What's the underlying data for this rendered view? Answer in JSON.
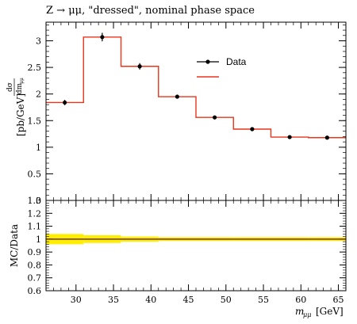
{
  "chart_data": [
    {
      "type": "line",
      "title": "Z → μμ, \"dressed\", nominal phase space",
      "ylabel_top": "dσ",
      "ylabel_bottom": "dm",
      "ylabel_bottom_sub": "μμ",
      "ylabel_unit": "[pb/GeV]",
      "ylim": [
        0,
        3.35
      ],
      "yticks": [
        0,
        0.5,
        1,
        1.5,
        2,
        2.5,
        3
      ],
      "ytick_labels": [
        "0",
        "0.5",
        "1",
        "1.5",
        "2",
        "2.5",
        "3"
      ],
      "xlim": [
        26,
        66
      ],
      "legend_position": "top-right",
      "series": [
        {
          "name": "Data",
          "color": "#000000",
          "kind": "points",
          "x": [
            28.5,
            33.5,
            38.5,
            43.5,
            48.5,
            53.5,
            58.5,
            63.5
          ],
          "y": [
            1.84,
            3.07,
            2.52,
            1.95,
            1.56,
            1.34,
            1.19,
            1.18
          ],
          "yerr": [
            0.05,
            0.08,
            0.06,
            0.03,
            0.02,
            0.02,
            0.02,
            0.02
          ]
        },
        {
          "name": "",
          "color": "#e8351b",
          "kind": "step",
          "bin_edges": [
            26,
            31,
            36,
            41,
            46,
            51,
            56,
            61,
            66
          ],
          "values": [
            1.84,
            3.07,
            2.52,
            1.95,
            1.56,
            1.34,
            1.19,
            1.18
          ]
        }
      ]
    },
    {
      "type": "line",
      "ylabel": "MC/Data",
      "ylim": [
        0.6,
        1.3
      ],
      "yticks": [
        0.6,
        0.7,
        0.8,
        0.9,
        1.0,
        1.1,
        1.2,
        1.3
      ],
      "ytick_labels": [
        "0.6",
        "0.7",
        "0.8",
        "0.9",
        "1",
        "1.1",
        "1.2",
        "1.3"
      ],
      "xlabel": "m",
      "xlabel_sub": "μμ",
      "xlabel_unit": "[GeV]",
      "xlim": [
        26,
        66
      ],
      "xticks": [
        30,
        35,
        40,
        45,
        50,
        55,
        60,
        65
      ],
      "xtick_labels": [
        "30",
        "35",
        "40",
        "45",
        "50",
        "55",
        "60",
        "65"
      ],
      "band": {
        "color": "#ffee00",
        "bin_edges": [
          26,
          31,
          36,
          41,
          46,
          51,
          56,
          61,
          66
        ],
        "low": [
          0.96,
          0.97,
          0.98,
          0.985,
          0.985,
          0.985,
          0.985,
          0.985
        ],
        "high": [
          1.04,
          1.03,
          1.02,
          1.015,
          1.015,
          1.015,
          1.015,
          1.015
        ]
      },
      "reference_line": 1.0,
      "reference_color": "#000000"
    }
  ]
}
